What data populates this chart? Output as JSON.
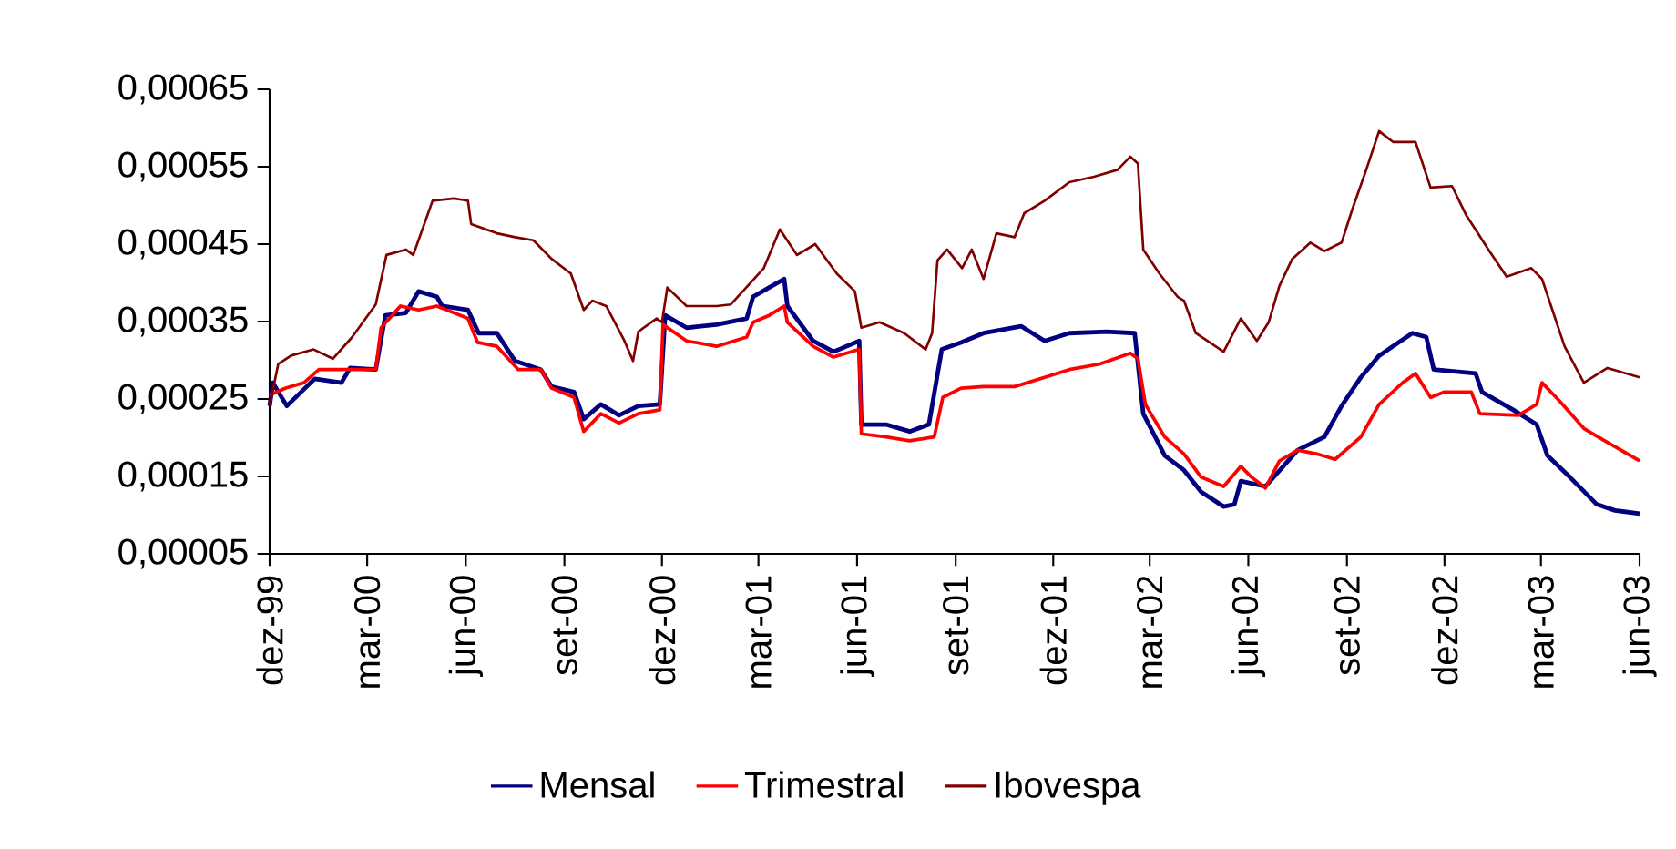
{
  "chart_data": {
    "type": "line",
    "xlim": [
      "1999-12-01",
      "2003-06-01"
    ],
    "xticks": [
      {
        "value": "1999-12-01",
        "label": "dez-99"
      },
      {
        "value": "2000-03-01",
        "label": "mar-00"
      },
      {
        "value": "2000-06-01",
        "label": "jun-00"
      },
      {
        "value": "2000-09-01",
        "label": "set-00"
      },
      {
        "value": "2000-12-01",
        "label": "dez-00"
      },
      {
        "value": "2001-03-01",
        "label": "mar-01"
      },
      {
        "value": "2001-06-01",
        "label": "jun-01"
      },
      {
        "value": "2001-09-01",
        "label": "set-01"
      },
      {
        "value": "2001-12-01",
        "label": "dez-01"
      },
      {
        "value": "2002-03-01",
        "label": "mar-02"
      },
      {
        "value": "2002-06-01",
        "label": "jun-02"
      },
      {
        "value": "2002-09-01",
        "label": "set-02"
      },
      {
        "value": "2002-12-01",
        "label": "dez-02"
      },
      {
        "value": "2003-03-01",
        "label": "mar-03"
      },
      {
        "value": "2003-06-01",
        "label": "jun-03"
      }
    ],
    "ylim": [
      5e-05,
      0.00065
    ],
    "yticks": [
      {
        "value": 5e-05,
        "label": "0,00005"
      },
      {
        "value": 0.00015,
        "label": "0,00015"
      },
      {
        "value": 0.00025,
        "label": "0,00025"
      },
      {
        "value": 0.00035,
        "label": "0,00035"
      },
      {
        "value": 0.00045,
        "label": "0,00045"
      },
      {
        "value": 0.00055,
        "label": "0,00055"
      },
      {
        "value": 0.00065,
        "label": "0,00065"
      }
    ],
    "grid": false,
    "legend": "bottom",
    "marker": "none",
    "line_style": "solid",
    "series": [
      {
        "name": "Mensal",
        "color": "#000080",
        "x": [
          "1999-12-01",
          "1999-12-04",
          "1999-12-17",
          "2000-01-12",
          "2000-02-06",
          "2000-02-14",
          "2000-03-09",
          "2000-03-18",
          "2000-04-06",
          "2000-04-18",
          "2000-05-05",
          "2000-05-10",
          "2000-06-03",
          "2000-06-13",
          "2000-06-30",
          "2000-07-17",
          "2000-08-10",
          "2000-08-20",
          "2000-09-10",
          "2000-09-19",
          "2000-10-05",
          "2000-10-22",
          "2000-11-09",
          "2000-11-29",
          "2000-12-04",
          "2000-12-24",
          "2001-01-21",
          "2001-02-18",
          "2001-02-24",
          "2001-03-11",
          "2001-03-25",
          "2001-03-28",
          "2001-04-21",
          "2001-05-10",
          "2001-06-03",
          "2001-06-05",
          "2001-06-28",
          "2001-07-20",
          "2001-08-07",
          "2001-08-19",
          "2001-09-06",
          "2001-09-27",
          "2001-11-01",
          "2001-11-23",
          "2001-12-16",
          "2002-01-20",
          "2002-02-15",
          "2002-02-23",
          "2002-03-15",
          "2002-04-02",
          "2002-04-18",
          "2002-05-09",
          "2002-05-19",
          "2002-05-25",
          "2002-06-17",
          "2002-07-17",
          "2002-08-11",
          "2002-08-27",
          "2002-09-14",
          "2002-10-01",
          "2002-11-01",
          "2002-11-14",
          "2002-11-21",
          "2002-12-30",
          "2003-01-05",
          "2003-02-03",
          "2003-02-25",
          "2003-03-07",
          "2003-03-28",
          "2003-04-22",
          "2003-05-09",
          "2003-06-01"
        ],
        "values": [
          0.000241,
          0.000271,
          0.000241,
          0.000276,
          0.000271,
          0.00029,
          0.000288,
          0.000358,
          0.000361,
          0.000389,
          0.000382,
          0.00037,
          0.000365,
          0.000335,
          0.000335,
          0.000299,
          0.000288,
          0.000266,
          0.000259,
          0.000224,
          0.000243,
          0.000229,
          0.000241,
          0.000243,
          0.000358,
          0.000342,
          0.000346,
          0.000354,
          0.000382,
          0.000394,
          0.000405,
          0.00037,
          0.000325,
          0.000311,
          0.000325,
          0.000217,
          0.000217,
          0.000208,
          0.000217,
          0.000314,
          0.000323,
          0.000335,
          0.000344,
          0.000325,
          0.000335,
          0.000337,
          0.000335,
          0.000231,
          0.000177,
          0.000158,
          0.00013,
          0.000111,
          0.000114,
          0.000144,
          0.000137,
          0.000184,
          0.000201,
          0.000241,
          0.000278,
          0.000306,
          0.000335,
          0.00033,
          0.000288,
          0.000283,
          0.000259,
          0.000236,
          0.000217,
          0.000177,
          0.000149,
          0.000114,
          0.000106,
          0.000102
        ]
      },
      {
        "name": "Trimestral",
        "color": "#ff0000",
        "x": [
          "1999-12-01",
          "1999-12-16",
          "2000-01-02",
          "2000-01-16",
          "2000-02-11",
          "2000-03-09",
          "2000-03-14",
          "2000-04-01",
          "2000-04-18",
          "2000-05-05",
          "2000-06-03",
          "2000-06-12",
          "2000-06-30",
          "2000-07-20",
          "2000-08-10",
          "2000-08-20",
          "2000-09-10",
          "2000-09-19",
          "2000-10-05",
          "2000-10-22",
          "2000-11-09",
          "2000-11-29",
          "2000-12-02",
          "2000-12-24",
          "2001-01-21",
          "2001-02-18",
          "2001-02-24",
          "2001-03-11",
          "2001-03-25",
          "2001-03-28",
          "2001-04-21",
          "2001-05-10",
          "2001-06-03",
          "2001-06-05",
          "2001-06-28",
          "2001-07-20",
          "2001-08-12",
          "2001-08-20",
          "2001-09-06",
          "2001-09-27",
          "2001-10-26",
          "2001-11-23",
          "2001-12-16",
          "2002-01-13",
          "2002-02-11",
          "2002-02-18",
          "2002-02-25",
          "2002-03-15",
          "2002-04-02",
          "2002-04-18",
          "2002-05-09",
          "2002-05-25",
          "2002-06-04",
          "2002-06-17",
          "2002-06-30",
          "2002-07-17",
          "2002-08-04",
          "2002-08-21",
          "2002-09-14",
          "2002-10-01",
          "2002-10-23",
          "2002-11-04",
          "2002-11-18",
          "2002-12-01",
          "2002-12-26",
          "2003-01-03",
          "2003-02-08",
          "2003-02-25",
          "2003-03-02",
          "2003-03-18",
          "2003-04-10",
          "2003-05-02",
          "2003-06-01"
        ],
        "values": [
          0.000255,
          0.000264,
          0.000271,
          0.000288,
          0.000288,
          0.000288,
          0.000342,
          0.00037,
          0.000365,
          0.00037,
          0.000354,
          0.000323,
          0.000318,
          0.000288,
          0.000288,
          0.000264,
          0.000252,
          0.000208,
          0.000231,
          0.000219,
          0.000231,
          0.000236,
          0.000346,
          0.000325,
          0.000318,
          0.00033,
          0.000349,
          0.000358,
          0.00037,
          0.000349,
          0.000318,
          0.000304,
          0.000314,
          0.000205,
          0.000201,
          0.000196,
          0.000201,
          0.000252,
          0.000264,
          0.000266,
          0.000266,
          0.000278,
          0.000288,
          0.000295,
          0.000309,
          0.000302,
          0.000243,
          0.000201,
          0.000179,
          0.000149,
          0.000137,
          0.000163,
          0.000149,
          0.000135,
          0.00017,
          0.000184,
          0.000179,
          0.000172,
          0.000201,
          0.000243,
          0.000271,
          0.000283,
          0.000252,
          0.000259,
          0.000259,
          0.000231,
          0.000229,
          0.000243,
          0.000271,
          0.000248,
          0.000212,
          0.000194,
          0.00017
        ]
      },
      {
        "name": "Ibovespa",
        "color": "#800000",
        "x": [
          "1999-12-01",
          "1999-12-09",
          "1999-12-21",
          "2000-01-11",
          "2000-01-29",
          "2000-02-16",
          "2000-03-09",
          "2000-03-19",
          "2000-04-06",
          "2000-04-13",
          "2000-05-01",
          "2000-05-21",
          "2000-06-03",
          "2000-06-06",
          "2000-06-30",
          "2000-07-17",
          "2000-08-03",
          "2000-08-20",
          "2000-09-07",
          "2000-09-19",
          "2000-09-27",
          "2000-10-10",
          "2000-10-27",
          "2000-11-04",
          "2000-11-09",
          "2000-11-26",
          "2000-12-01",
          "2000-12-06",
          "2000-12-24",
          "2001-01-21",
          "2001-02-03",
          "2001-02-19",
          "2001-03-06",
          "2001-03-21",
          "2001-04-06",
          "2001-04-23",
          "2001-05-13",
          "2001-05-30",
          "2001-06-05",
          "2001-06-22",
          "2001-07-15",
          "2001-08-04",
          "2001-08-10",
          "2001-08-15",
          "2001-08-24",
          "2001-09-07",
          "2001-09-16",
          "2001-09-27",
          "2001-10-09",
          "2001-10-26",
          "2001-11-04",
          "2001-11-23",
          "2001-12-16",
          "2002-01-08",
          "2002-01-30",
          "2002-02-11",
          "2002-02-18",
          "2002-02-23",
          "2002-03-10",
          "2002-03-27",
          "2002-04-02",
          "2002-04-13",
          "2002-05-09",
          "2002-05-25",
          "2002-06-09",
          "2002-06-20",
          "2002-06-30",
          "2002-07-12",
          "2002-07-29",
          "2002-08-11",
          "2002-08-27",
          "2002-09-06",
          "2002-09-19",
          "2002-10-01",
          "2002-10-14",
          "2002-11-04",
          "2002-11-18",
          "2002-12-08",
          "2002-12-21",
          "2003-01-11",
          "2003-01-28",
          "2003-02-20",
          "2003-03-02",
          "2003-03-23",
          "2003-04-10",
          "2003-05-02",
          "2003-06-01"
        ],
        "values": [
          0.000241,
          0.000295,
          0.000306,
          0.000314,
          0.000302,
          0.00033,
          0.000372,
          0.000436,
          0.000443,
          0.000436,
          0.000506,
          0.000509,
          0.000506,
          0.000476,
          0.000464,
          0.000459,
          0.000455,
          0.000431,
          0.000412,
          0.000365,
          0.000377,
          0.00037,
          0.000325,
          0.000299,
          0.000337,
          0.000354,
          0.000349,
          0.000394,
          0.00037,
          0.00037,
          0.000372,
          0.000396,
          0.000419,
          0.000469,
          0.000436,
          0.00045,
          0.000412,
          0.000389,
          0.000342,
          0.000349,
          0.000335,
          0.000314,
          0.000335,
          0.000429,
          0.000443,
          0.000419,
          0.000443,
          0.000405,
          0.000464,
          0.000459,
          0.00049,
          0.000506,
          0.00053,
          0.000537,
          0.000546,
          0.000563,
          0.000554,
          0.000443,
          0.000412,
          0.000382,
          0.000377,
          0.000335,
          0.000311,
          0.000354,
          0.000325,
          0.000349,
          0.000396,
          0.000431,
          0.000452,
          0.000441,
          0.000452,
          0.000495,
          0.000546,
          0.000596,
          0.000582,
          0.000582,
          0.000523,
          0.000525,
          0.000488,
          0.000443,
          0.000408,
          0.000419,
          0.000405,
          0.000318,
          0.000271,
          0.00029,
          0.000278
        ]
      }
    ]
  }
}
